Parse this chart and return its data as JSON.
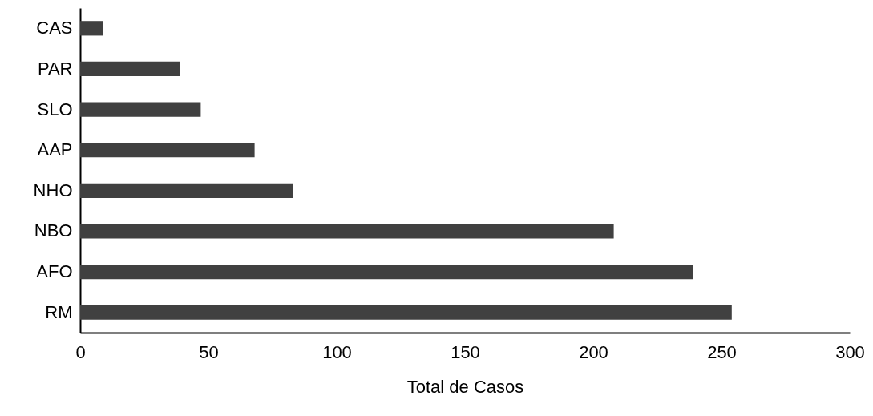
{
  "chart_data": {
    "type": "bar",
    "orientation": "horizontal",
    "xlabel": "Total de Casos",
    "categories": [
      "CAS",
      "PAR",
      "SLO",
      "AAP",
      "NHO",
      "NBO",
      "AFO",
      "RM"
    ],
    "values": [
      9,
      39,
      47,
      68,
      83,
      208,
      239,
      254
    ],
    "color": "#404040",
    "xlim": [
      0,
      300
    ],
    "xticks": [
      0,
      50,
      100,
      150,
      200,
      250,
      300
    ],
    "grid": false
  }
}
